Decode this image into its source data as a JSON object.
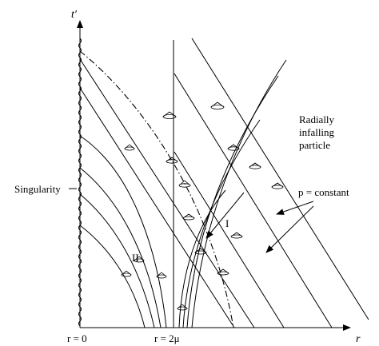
{
  "axes": {
    "x_label": "r",
    "y_label": "t′",
    "x_tick_origin": "r = 0",
    "x_tick_horizon": "r = 2μ"
  },
  "labels": {
    "singularity": "Singularity",
    "region_1": "I",
    "region_2": "II",
    "infalling_line1": "Radially",
    "infalling_line2": "infalling",
    "infalling_line3": "particle",
    "p_constant": "p = constant"
  },
  "colors": {
    "ink": "#000000",
    "background": "#ffffff"
  }
}
